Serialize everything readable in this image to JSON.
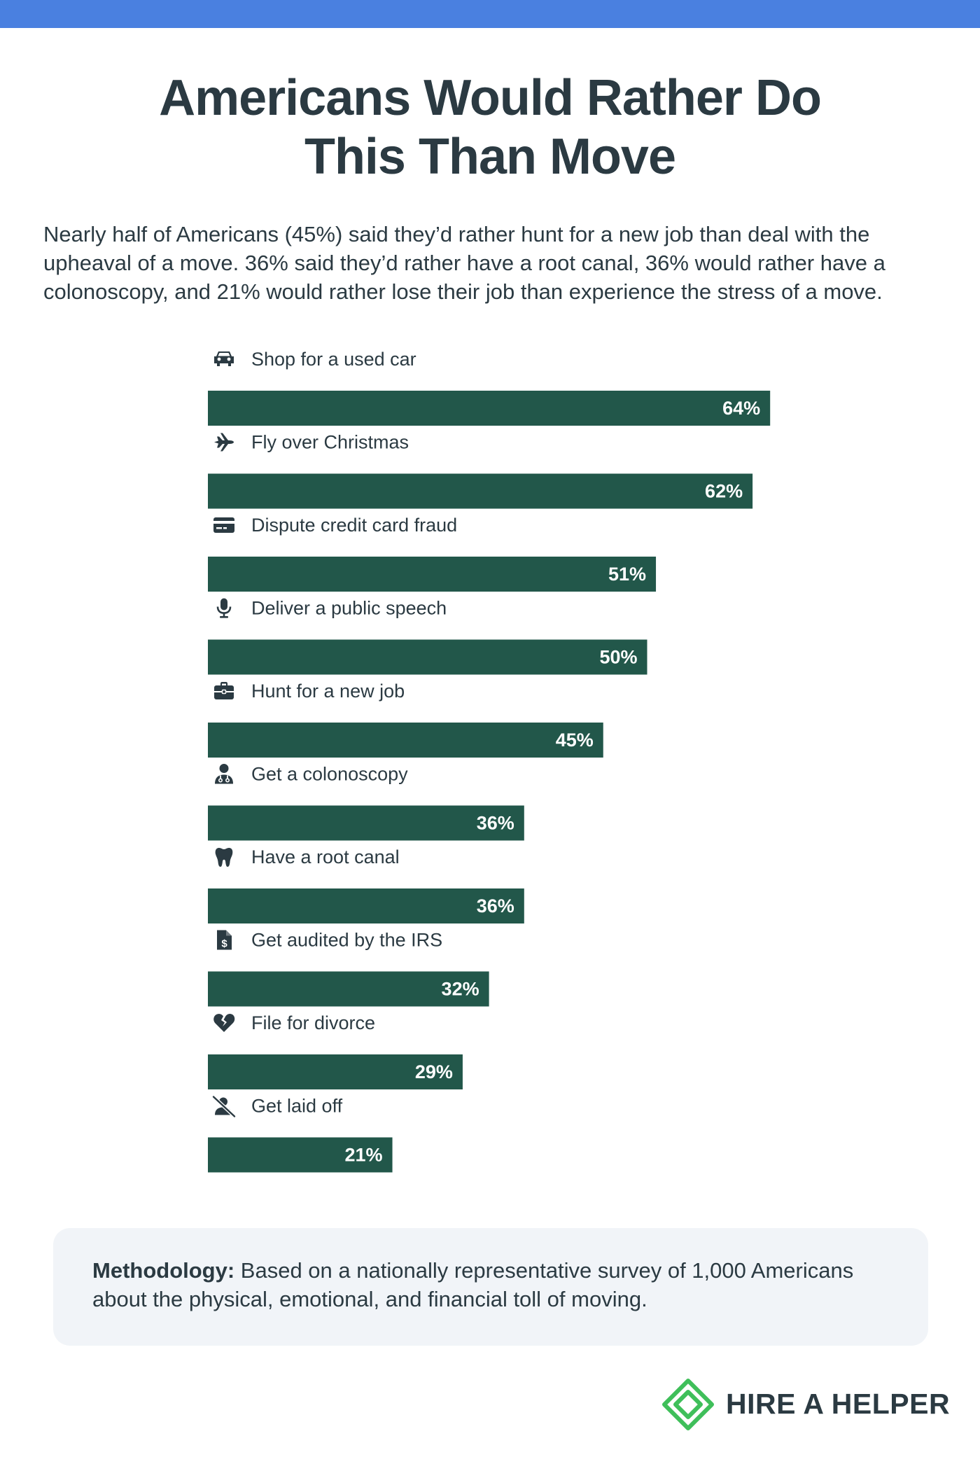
{
  "header": {
    "title_line1": "Americans Would Rather Do",
    "title_line2": "This Than Move",
    "intro": "Nearly half of Americans (45%) said they’d rather hunt for a new job than deal with the upheaval of a move. 36% said they’d rather have a root canal, 36% would rather have a colonoscopy, and 21% would rather lose their job than experience the stress of a move."
  },
  "chart_data": {
    "type": "bar",
    "orientation": "horizontal",
    "title": "",
    "xlabel": "",
    "ylabel": "",
    "xlim": [
      0,
      100
    ],
    "grid": false,
    "categories": [
      "Shop for a used car",
      "Fly over Christmas",
      "Dispute credit card fraud",
      "Deliver a public speech",
      "Hunt for a new job",
      "Get a colonoscopy",
      "Have a root canal",
      "Get audited by the IRS",
      "File for divorce",
      "Get laid off"
    ],
    "values": [
      64,
      62,
      51,
      50,
      45,
      36,
      36,
      32,
      29,
      21
    ],
    "value_labels": [
      "64%",
      "62%",
      "51%",
      "50%",
      "45%",
      "36%",
      "36%",
      "32%",
      "29%",
      "21%"
    ],
    "icons": [
      "car-icon",
      "airplane-icon",
      "credit-card-icon",
      "microphone-icon",
      "briefcase-icon",
      "doctor-icon",
      "tooth-icon",
      "tax-document-icon",
      "broken-heart-icon",
      "user-slash-icon"
    ],
    "bar_color": "#22574a"
  },
  "methodology": {
    "label": "Methodology:",
    "text": " Based on a nationally representative survey of 1,000 Americans about the physical, emotional, and financial toll of moving."
  },
  "brand": {
    "name": "HIRE A HELPER",
    "logo_color": "#3fbf5a"
  },
  "colors": {
    "top_band": "#4a80e0",
    "text": "#2b3a42",
    "panel": "#f1f4f8"
  }
}
